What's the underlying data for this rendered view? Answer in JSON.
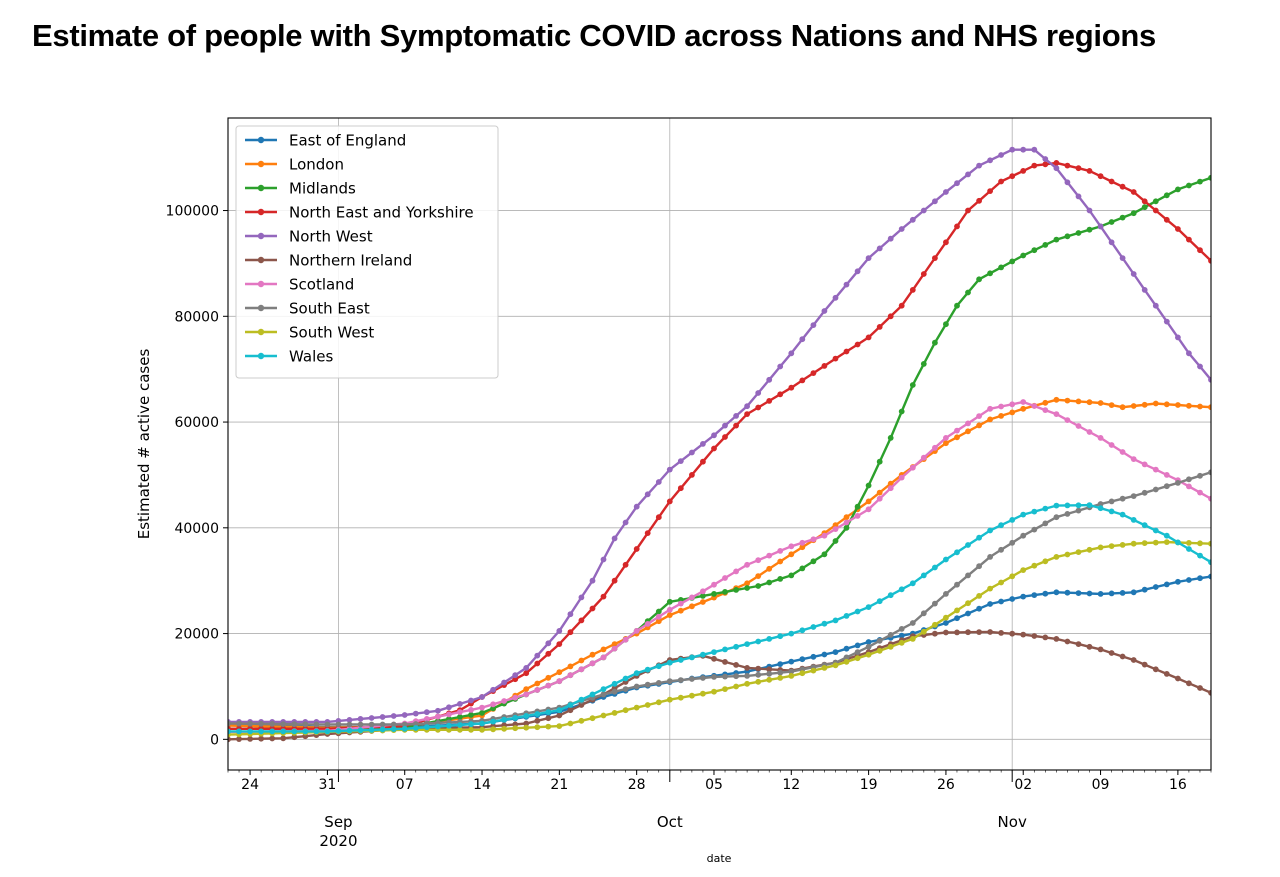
{
  "page": {
    "title": "Estimate of people with Symptomatic COVID across Nations and NHS regions"
  },
  "chart_data": {
    "type": "line",
    "title": "Estimate of people with Symptomatic COVID across Nations and NHS regions",
    "xlabel": "date",
    "ylabel": "Estimated # active cases",
    "ylim": [
      -5800,
      117500
    ],
    "grid": true,
    "legend_position": "top-left",
    "x_axis": {
      "type": "date",
      "start": "2020-08-22",
      "end": "2020-11-19",
      "day_ticks": [
        {
          "date": "2020-08-24",
          "label": "24"
        },
        {
          "date": "2020-08-31",
          "label": "31"
        },
        {
          "date": "2020-09-07",
          "label": "07"
        },
        {
          "date": "2020-09-14",
          "label": "14"
        },
        {
          "date": "2020-09-21",
          "label": "21"
        },
        {
          "date": "2020-09-28",
          "label": "28"
        },
        {
          "date": "2020-10-05",
          "label": "05"
        },
        {
          "date": "2020-10-12",
          "label": "12"
        },
        {
          "date": "2020-10-19",
          "label": "19"
        },
        {
          "date": "2020-10-26",
          "label": "26"
        },
        {
          "date": "2020-11-02",
          "label": "02"
        },
        {
          "date": "2020-11-09",
          "label": "09"
        },
        {
          "date": "2020-11-16",
          "label": "16"
        }
      ],
      "month_ticks": [
        {
          "date": "2020-09-01",
          "label": "Sep",
          "year": "2020"
        },
        {
          "date": "2020-10-01",
          "label": "Oct"
        },
        {
          "date": "2020-11-01",
          "label": "Nov"
        }
      ]
    },
    "y_ticks": [
      {
        "value": 0,
        "label": "0"
      },
      {
        "value": 20000,
        "label": "20000"
      },
      {
        "value": 40000,
        "label": "40000"
      },
      {
        "value": 60000,
        "label": "60000"
      },
      {
        "value": 80000,
        "label": "80000"
      },
      {
        "value": 100000,
        "label": "100000"
      }
    ],
    "series": [
      {
        "name": "East of England",
        "color": "#1f77b4",
        "points": [
          [
            "2020-08-22",
            2800
          ],
          [
            "2020-08-31",
            2300
          ],
          [
            "2020-09-07",
            2300
          ],
          [
            "2020-09-14",
            3000
          ],
          [
            "2020-09-21",
            5200
          ],
          [
            "2020-09-25",
            8000
          ],
          [
            "2020-09-28",
            9800
          ],
          [
            "2020-10-03",
            11500
          ],
          [
            "2020-10-08",
            12800
          ],
          [
            "2020-10-12",
            14700
          ],
          [
            "2020-10-16",
            16500
          ],
          [
            "2020-10-19",
            18400
          ],
          [
            "2020-10-23",
            20000
          ],
          [
            "2020-10-26",
            22000
          ],
          [
            "2020-10-30",
            25600
          ],
          [
            "2020-11-02",
            27000
          ],
          [
            "2020-11-05",
            27800
          ],
          [
            "2020-11-09",
            27500
          ],
          [
            "2020-11-12",
            27800
          ],
          [
            "2020-11-16",
            29800
          ],
          [
            "2020-11-19",
            30800
          ]
        ]
      },
      {
        "name": "London",
        "color": "#ff7f0e",
        "points": [
          [
            "2020-08-22",
            2600
          ],
          [
            "2020-08-31",
            2200
          ],
          [
            "2020-09-07",
            2400
          ],
          [
            "2020-09-14",
            4500
          ],
          [
            "2020-09-18",
            9500
          ],
          [
            "2020-09-21",
            12700
          ],
          [
            "2020-09-24",
            16000
          ],
          [
            "2020-09-28",
            20000
          ],
          [
            "2020-10-01",
            23500
          ],
          [
            "2020-10-05",
            26800
          ],
          [
            "2020-10-08",
            29500
          ],
          [
            "2020-10-12",
            35000
          ],
          [
            "2020-10-15",
            39000
          ],
          [
            "2020-10-19",
            45000
          ],
          [
            "2020-10-22",
            50000
          ],
          [
            "2020-10-26",
            56000
          ],
          [
            "2020-10-30",
            60500
          ],
          [
            "2020-11-02",
            62500
          ],
          [
            "2020-11-05",
            64200
          ],
          [
            "2020-11-09",
            63600
          ],
          [
            "2020-11-11",
            62800
          ],
          [
            "2020-11-14",
            63500
          ],
          [
            "2020-11-19",
            62800
          ]
        ]
      },
      {
        "name": "Midlands",
        "color": "#2ca02c",
        "points": [
          [
            "2020-08-22",
            2000
          ],
          [
            "2020-08-31",
            2000
          ],
          [
            "2020-09-07",
            2300
          ],
          [
            "2020-09-14",
            5000
          ],
          [
            "2020-09-18",
            8500
          ],
          [
            "2020-09-21",
            11000
          ],
          [
            "2020-09-25",
            15500
          ],
          [
            "2020-09-28",
            20500
          ],
          [
            "2020-10-01",
            26000
          ],
          [
            "2020-10-05",
            27500
          ],
          [
            "2020-10-09",
            29000
          ],
          [
            "2020-10-12",
            31000
          ],
          [
            "2020-10-15",
            35000
          ],
          [
            "2020-10-17",
            40000
          ],
          [
            "2020-10-19",
            48000
          ],
          [
            "2020-10-21",
            57000
          ],
          [
            "2020-10-23",
            67000
          ],
          [
            "2020-10-25",
            75000
          ],
          [
            "2020-10-27",
            82000
          ],
          [
            "2020-10-29",
            87000
          ],
          [
            "2020-11-02",
            91500
          ],
          [
            "2020-11-05",
            94500
          ],
          [
            "2020-11-09",
            97000
          ],
          [
            "2020-11-12",
            99500
          ],
          [
            "2020-11-16",
            104000
          ],
          [
            "2020-11-19",
            106200
          ]
        ]
      },
      {
        "name": "North East and Yorkshire",
        "color": "#d62728",
        "points": [
          [
            "2020-08-22",
            2000
          ],
          [
            "2020-08-31",
            2000
          ],
          [
            "2020-09-07",
            2500
          ],
          [
            "2020-09-12",
            5500
          ],
          [
            "2020-09-14",
            8000
          ],
          [
            "2020-09-18",
            12500
          ],
          [
            "2020-09-21",
            18000
          ],
          [
            "2020-09-25",
            27000
          ],
          [
            "2020-09-28",
            36000
          ],
          [
            "2020-10-01",
            45000
          ],
          [
            "2020-10-05",
            55000
          ],
          [
            "2020-10-08",
            61500
          ],
          [
            "2020-10-12",
            66500
          ],
          [
            "2020-10-16",
            72000
          ],
          [
            "2020-10-19",
            76000
          ],
          [
            "2020-10-22",
            82000
          ],
          [
            "2020-10-25",
            91000
          ],
          [
            "2020-10-28",
            100000
          ],
          [
            "2020-10-31",
            105500
          ],
          [
            "2020-11-03",
            108500
          ],
          [
            "2020-11-05",
            109000
          ],
          [
            "2020-11-08",
            107500
          ],
          [
            "2020-11-12",
            103500
          ],
          [
            "2020-11-16",
            96500
          ],
          [
            "2020-11-19",
            90500
          ]
        ]
      },
      {
        "name": "North West",
        "color": "#9467bd",
        "points": [
          [
            "2020-08-22",
            3300
          ],
          [
            "2020-08-31",
            3300
          ],
          [
            "2020-09-07",
            4600
          ],
          [
            "2020-09-10",
            5400
          ],
          [
            "2020-09-14",
            8000
          ],
          [
            "2020-09-18",
            13500
          ],
          [
            "2020-09-21",
            20500
          ],
          [
            "2020-09-24",
            30000
          ],
          [
            "2020-09-26",
            38000
          ],
          [
            "2020-09-28",
            44000
          ],
          [
            "2020-10-01",
            51000
          ],
          [
            "2020-10-05",
            57500
          ],
          [
            "2020-10-08",
            63000
          ],
          [
            "2020-10-12",
            73000
          ],
          [
            "2020-10-15",
            81000
          ],
          [
            "2020-10-19",
            91000
          ],
          [
            "2020-10-22",
            96500
          ],
          [
            "2020-10-26",
            103500
          ],
          [
            "2020-10-29",
            108500
          ],
          [
            "2020-11-01",
            111500
          ],
          [
            "2020-11-03",
            111500
          ],
          [
            "2020-11-05",
            108000
          ],
          [
            "2020-11-08",
            100000
          ],
          [
            "2020-11-11",
            91000
          ],
          [
            "2020-11-14",
            82000
          ],
          [
            "2020-11-17",
            73000
          ],
          [
            "2020-11-19",
            68000
          ]
        ]
      },
      {
        "name": "Northern Ireland",
        "color": "#8c564b",
        "points": [
          [
            "2020-08-22",
            0
          ],
          [
            "2020-08-27",
            200
          ],
          [
            "2020-08-31",
            1000
          ],
          [
            "2020-09-07",
            2000
          ],
          [
            "2020-09-14",
            2300
          ],
          [
            "2020-09-18",
            3000
          ],
          [
            "2020-09-21",
            4500
          ],
          [
            "2020-09-25",
            8500
          ],
          [
            "2020-09-28",
            12000
          ],
          [
            "2020-10-01",
            15000
          ],
          [
            "2020-10-04",
            15800
          ],
          [
            "2020-10-08",
            13500
          ],
          [
            "2020-10-12",
            13000
          ],
          [
            "2020-10-16",
            14500
          ],
          [
            "2020-10-19",
            16500
          ],
          [
            "2020-10-23",
            19500
          ],
          [
            "2020-10-26",
            20200
          ],
          [
            "2020-10-30",
            20300
          ],
          [
            "2020-11-02",
            19800
          ],
          [
            "2020-11-05",
            19000
          ],
          [
            "2020-11-09",
            17000
          ],
          [
            "2020-11-12",
            15000
          ],
          [
            "2020-11-16",
            11500
          ],
          [
            "2020-11-19",
            8800
          ]
        ]
      },
      {
        "name": "Scotland",
        "color": "#e377c2",
        "points": [
          [
            "2020-08-22",
            1400
          ],
          [
            "2020-08-31",
            1600
          ],
          [
            "2020-09-07",
            3000
          ],
          [
            "2020-09-14",
            6000
          ],
          [
            "2020-09-18",
            8500
          ],
          [
            "2020-09-21",
            11000
          ],
          [
            "2020-09-25",
            15500
          ],
          [
            "2020-09-28",
            20500
          ],
          [
            "2020-10-01",
            24500
          ],
          [
            "2020-10-04",
            28000
          ],
          [
            "2020-10-08",
            33000
          ],
          [
            "2020-10-12",
            36500
          ],
          [
            "2020-10-15",
            38500
          ],
          [
            "2020-10-19",
            43500
          ],
          [
            "2020-10-22",
            49500
          ],
          [
            "2020-10-26",
            57000
          ],
          [
            "2020-10-30",
            62500
          ],
          [
            "2020-11-02",
            63800
          ],
          [
            "2020-11-05",
            61500
          ],
          [
            "2020-11-09",
            57000
          ],
          [
            "2020-11-12",
            53000
          ],
          [
            "2020-11-16",
            49000
          ],
          [
            "2020-11-19",
            45500
          ]
        ]
      },
      {
        "name": "South East",
        "color": "#7f7f7f",
        "points": [
          [
            "2020-08-22",
            3000
          ],
          [
            "2020-08-31",
            2800
          ],
          [
            "2020-09-07",
            2800
          ],
          [
            "2020-09-14",
            3500
          ],
          [
            "2020-09-21",
            6000
          ],
          [
            "2020-09-25",
            8500
          ],
          [
            "2020-09-28",
            10000
          ],
          [
            "2020-10-01",
            11000
          ],
          [
            "2020-10-05",
            11800
          ],
          [
            "2020-10-08",
            12000
          ],
          [
            "2020-10-12",
            12800
          ],
          [
            "2020-10-16",
            14500
          ],
          [
            "2020-10-19",
            17500
          ],
          [
            "2020-10-23",
            22000
          ],
          [
            "2020-10-26",
            27500
          ],
          [
            "2020-10-30",
            34500
          ],
          [
            "2020-11-02",
            38500
          ],
          [
            "2020-11-05",
            42000
          ],
          [
            "2020-11-09",
            44500
          ],
          [
            "2020-11-12",
            46000
          ],
          [
            "2020-11-16",
            48500
          ],
          [
            "2020-11-19",
            50500
          ]
        ]
      },
      {
        "name": "South West",
        "color": "#bcbd22",
        "points": [
          [
            "2020-08-22",
            900
          ],
          [
            "2020-08-31",
            1400
          ],
          [
            "2020-09-07",
            1800
          ],
          [
            "2020-09-14",
            1800
          ],
          [
            "2020-09-21",
            2500
          ],
          [
            "2020-09-25",
            4500
          ],
          [
            "2020-09-28",
            6000
          ],
          [
            "2020-10-01",
            7500
          ],
          [
            "2020-10-05",
            9000
          ],
          [
            "2020-10-08",
            10500
          ],
          [
            "2020-10-12",
            12000
          ],
          [
            "2020-10-16",
            14000
          ],
          [
            "2020-10-19",
            16000
          ],
          [
            "2020-10-23",
            19000
          ],
          [
            "2020-10-26",
            23000
          ],
          [
            "2020-10-30",
            28500
          ],
          [
            "2020-11-02",
            32000
          ],
          [
            "2020-11-05",
            34500
          ],
          [
            "2020-11-09",
            36300
          ],
          [
            "2020-11-12",
            37000
          ],
          [
            "2020-11-15",
            37300
          ],
          [
            "2020-11-19",
            37000
          ]
        ]
      },
      {
        "name": "Wales",
        "color": "#17becf",
        "points": [
          [
            "2020-08-22",
            1500
          ],
          [
            "2020-08-31",
            1500
          ],
          [
            "2020-09-07",
            2000
          ],
          [
            "2020-09-14",
            3000
          ],
          [
            "2020-09-21",
            5500
          ],
          [
            "2020-09-25",
            9500
          ],
          [
            "2020-09-28",
            12500
          ],
          [
            "2020-10-01",
            14500
          ],
          [
            "2020-10-05",
            16500
          ],
          [
            "2020-10-08",
            18000
          ],
          [
            "2020-10-12",
            20000
          ],
          [
            "2020-10-16",
            22500
          ],
          [
            "2020-10-19",
            25000
          ],
          [
            "2020-10-23",
            29500
          ],
          [
            "2020-10-26",
            34000
          ],
          [
            "2020-10-30",
            39500
          ],
          [
            "2020-11-02",
            42500
          ],
          [
            "2020-11-05",
            44200
          ],
          [
            "2020-11-08",
            44300
          ],
          [
            "2020-11-11",
            42500
          ],
          [
            "2020-11-15",
            38500
          ],
          [
            "2020-11-19",
            33500
          ]
        ]
      }
    ]
  }
}
